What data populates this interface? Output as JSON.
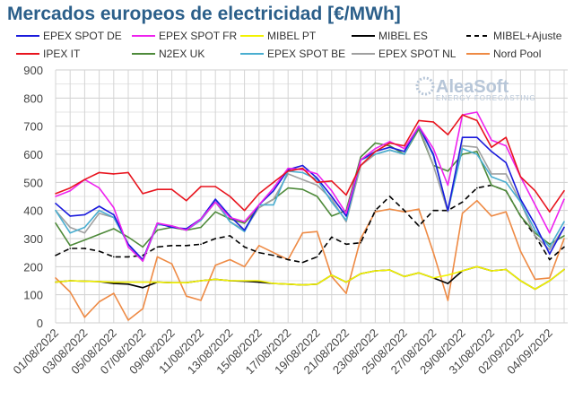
{
  "title": "Mercados europeos de electricidad [€/MWh]",
  "logo": {
    "name": "AleaSoft",
    "tagline": "ENERGY FORECASTING"
  },
  "chart_data": {
    "type": "line",
    "title": "Mercados europeos de electricidad [€/MWh]",
    "ylim": [
      0,
      900
    ],
    "yticks": [
      0,
      100,
      200,
      300,
      400,
      500,
      600,
      700,
      800,
      900
    ],
    "grid": true,
    "legend_position": "top",
    "x": [
      "01/08/2022",
      "02/08/2022",
      "03/08/2022",
      "04/08/2022",
      "05/08/2022",
      "06/08/2022",
      "07/08/2022",
      "08/08/2022",
      "09/08/2022",
      "10/08/2022",
      "11/08/2022",
      "12/08/2022",
      "13/08/2022",
      "14/08/2022",
      "15/08/2022",
      "16/08/2022",
      "17/08/2022",
      "18/08/2022",
      "19/08/2022",
      "20/08/2022",
      "21/08/2022",
      "22/08/2022",
      "23/08/2022",
      "24/08/2022",
      "25/08/2022",
      "26/08/2022",
      "27/08/2022",
      "28/08/2022",
      "29/08/2022",
      "30/08/2022",
      "31/08/2022",
      "01/09/2022",
      "02/09/2022",
      "03/09/2022",
      "04/09/2022",
      "05/09/2022"
    ],
    "xtick_labels": [
      "01/08/2022",
      "03/08/2022",
      "05/08/2022",
      "07/08/2022",
      "09/08/2022",
      "11/08/2022",
      "13/08/2022",
      "15/08/2022",
      "17/08/2022",
      "19/08/2022",
      "21/08/2022",
      "23/08/2022",
      "25/08/2022",
      "27/08/2022",
      "29/08/2022",
      "31/08/2022",
      "02/09/2022",
      "04/09/2022"
    ],
    "series": [
      {
        "name": "EPEX SPOT DE",
        "color": "#1a1adc",
        "dash": false,
        "values": [
          425,
          380,
          385,
          415,
          385,
          280,
          225,
          355,
          340,
          335,
          370,
          440,
          380,
          330,
          420,
          470,
          545,
          560,
          515,
          450,
          380,
          580,
          610,
          625,
          610,
          700,
          600,
          400,
          660,
          660,
          610,
          570,
          440,
          350,
          245,
          340
        ]
      },
      {
        "name": "EPEX SPOT FR",
        "color": "#ee22ee",
        "dash": false,
        "values": [
          450,
          470,
          510,
          480,
          410,
          270,
          220,
          355,
          345,
          330,
          370,
          430,
          375,
          360,
          420,
          480,
          550,
          545,
          530,
          470,
          390,
          580,
          620,
          645,
          620,
          700,
          620,
          490,
          740,
          750,
          650,
          630,
          520,
          420,
          320,
          440
        ]
      },
      {
        "name": "MIBEL PT",
        "color": "#f2f200",
        "dash": false,
        "values": [
          145,
          150,
          148,
          147,
          145,
          145,
          145,
          145,
          143,
          143,
          150,
          155,
          150,
          150,
          150,
          140,
          138,
          135,
          138,
          170,
          145,
          175,
          185,
          188,
          165,
          178,
          160,
          170,
          185,
          200,
          185,
          190,
          150,
          120,
          150,
          190
        ]
      },
      {
        "name": "MIBEL ES",
        "color": "#000000",
        "dash": false,
        "values": [
          145,
          150,
          148,
          147,
          140,
          138,
          125,
          145,
          143,
          143,
          150,
          155,
          150,
          148,
          145,
          140,
          138,
          135,
          138,
          170,
          145,
          175,
          185,
          188,
          165,
          178,
          160,
          140,
          185,
          200,
          185,
          190,
          150,
          120,
          150,
          190
        ]
      },
      {
        "name": "MIBEL+Ajuste",
        "color": "#000000",
        "dash": true,
        "values": [
          240,
          265,
          265,
          255,
          235,
          235,
          240,
          270,
          275,
          275,
          280,
          300,
          310,
          270,
          250,
          240,
          225,
          215,
          235,
          305,
          280,
          285,
          400,
          450,
          400,
          345,
          400,
          400,
          430,
          480,
          490,
          470,
          380,
          310,
          225,
          270
        ]
      },
      {
        "name": "IPEX IT",
        "color": "#e8141e",
        "dash": false,
        "values": [
          460,
          480,
          510,
          535,
          530,
          535,
          460,
          475,
          475,
          435,
          485,
          485,
          450,
          400,
          460,
          500,
          540,
          550,
          500,
          505,
          455,
          560,
          610,
          640,
          630,
          720,
          715,
          670,
          740,
          720,
          625,
          660,
          520,
          470,
          395,
          470
        ]
      },
      {
        "name": "N2EX UK",
        "color": "#4e8a3a",
        "dash": false,
        "values": [
          355,
          275,
          295,
          315,
          335,
          305,
          270,
          330,
          340,
          330,
          340,
          395,
          370,
          355,
          410,
          440,
          480,
          475,
          450,
          380,
          400,
          590,
          640,
          630,
          600,
          690,
          560,
          540,
          600,
          610,
          490,
          470,
          380,
          320,
          280,
          310
        ]
      },
      {
        "name": "EPEX SPOT BE",
        "color": "#4aaed0",
        "dash": false,
        "values": [
          400,
          320,
          340,
          400,
          375,
          280,
          220,
          350,
          345,
          330,
          365,
          435,
          360,
          325,
          420,
          420,
          540,
          535,
          510,
          430,
          365,
          580,
          600,
          615,
          600,
          700,
          595,
          400,
          620,
          600,
          520,
          500,
          430,
          330,
          270,
          360
        ]
      },
      {
        "name": "EPEX SPOT NL",
        "color": "#a0a0a0",
        "dash": false,
        "values": [
          400,
          340,
          320,
          390,
          375,
          280,
          220,
          350,
          345,
          330,
          365,
          430,
          360,
          330,
          410,
          440,
          530,
          510,
          490,
          440,
          360,
          560,
          600,
          615,
          600,
          700,
          560,
          395,
          630,
          625,
          530,
          530,
          430,
          310,
          260,
          340
        ]
      },
      {
        "name": "Nord Pool",
        "color": "#ee8a44",
        "dash": false,
        "values": [
          160,
          110,
          20,
          75,
          105,
          10,
          50,
          235,
          210,
          95,
          80,
          205,
          225,
          200,
          275,
          250,
          225,
          320,
          325,
          165,
          105,
          300,
          395,
          405,
          395,
          405,
          250,
          80,
          390,
          435,
          380,
          395,
          255,
          155,
          160,
          300
        ]
      }
    ]
  }
}
